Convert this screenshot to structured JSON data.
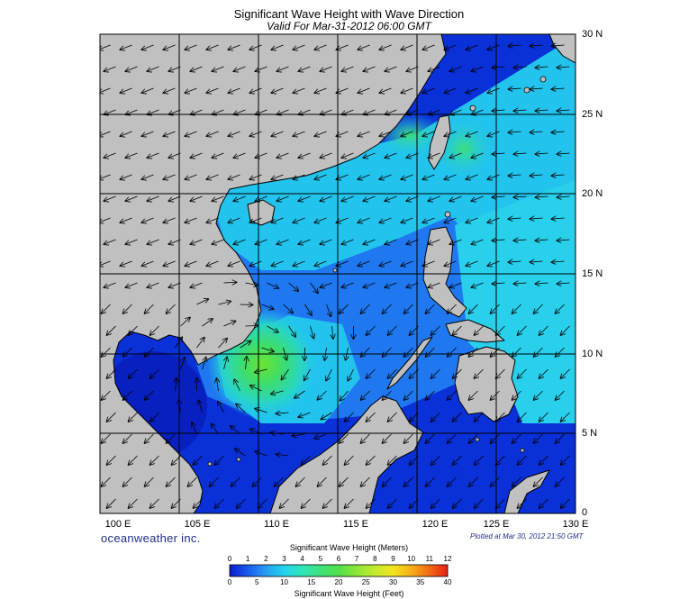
{
  "header": {
    "title": "Significant Wave Height with Wave Direction",
    "subtitle": "Valid For Mar-31-2012 06:00 GMT"
  },
  "map": {
    "lat_labels": [
      "30 N",
      "25 N",
      "20 N",
      "15 N",
      "10 N",
      "5 N",
      "0"
    ],
    "lon_labels": [
      "100 E",
      "105 E",
      "110 E",
      "115 E",
      "120 E",
      "125 E",
      "130 E"
    ],
    "land_color": "#c0c0c0",
    "ocean_colors": {
      "calm": "#0a30d8",
      "moderate": "#1f78f0",
      "elevated": "#22c4ee",
      "high": "#2ee4c0",
      "peak": "#3ee03c"
    },
    "peak_wave_location": "10 N 110 E"
  },
  "footer": {
    "brand": "oceanweather inc.",
    "plotted": "Plotted at Mar 30, 2012 21:50 GMT"
  },
  "colorbar": {
    "title_top": "Significant Wave Height (Meters)",
    "title_bottom": "Significant Wave Height (Feet)",
    "meters_ticks": [
      "0",
      "1",
      "2",
      "3",
      "4",
      "5",
      "6",
      "7",
      "8",
      "9",
      "10",
      "11",
      "12"
    ],
    "feet_ticks": [
      "0",
      "5",
      "10",
      "15",
      "20",
      "25",
      "30",
      "35",
      "40"
    ],
    "gradient": [
      "#0a1ccf",
      "#1a5bef",
      "#2a9cf2",
      "#22d4ee",
      "#2fe6b8",
      "#3de07a",
      "#52e04a",
      "#8ce638",
      "#c6ea2c",
      "#f2e41e",
      "#f6b018",
      "#f26a14",
      "#e81e14"
    ]
  }
}
